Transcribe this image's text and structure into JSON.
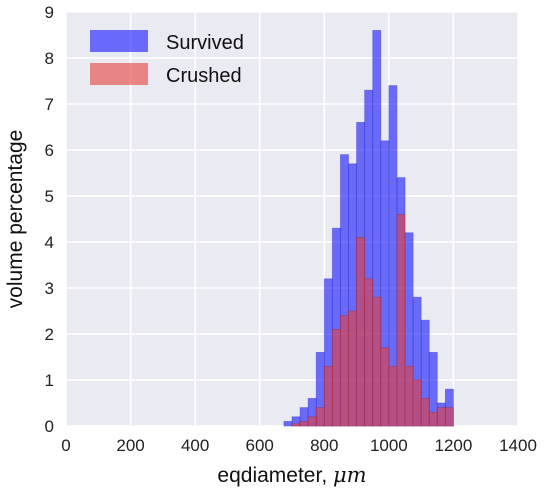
{
  "chart_data": {
    "type": "histogram",
    "title": "",
    "xlabel": "eqdiameter, ",
    "xlabel_unit": "μm",
    "ylabel": "volume percentage",
    "xlim": [
      0,
      1400
    ],
    "ylim": [
      0,
      9
    ],
    "xticks": [
      "0",
      "200",
      "400",
      "600",
      "800",
      "1000",
      "1200",
      "1400"
    ],
    "yticks": [
      "0",
      "1",
      "2",
      "3",
      "4",
      "5",
      "6",
      "7",
      "8",
      "9"
    ],
    "grid": true,
    "legend_position": "top-left",
    "bin_width": 25,
    "bin_starts": [
      675,
      700,
      725,
      750,
      775,
      800,
      825,
      850,
      875,
      900,
      925,
      950,
      975,
      1000,
      1025,
      1050,
      1075,
      1100,
      1125,
      1150,
      1175
    ],
    "series": [
      {
        "name": "Survived",
        "color": "#0000ff",
        "values": [
          0.1,
          0.2,
          0.4,
          0.6,
          1.6,
          3.2,
          4.3,
          5.9,
          5.7,
          6.6,
          7.3,
          8.6,
          6.2,
          7.4,
          5.4,
          4.2,
          2.8,
          2.3,
          1.6,
          0.5,
          0.8
        ]
      },
      {
        "name": "Crushed",
        "color": "#e8403a",
        "values": [
          0,
          0.05,
          0.1,
          0.2,
          0.4,
          1.3,
          2.1,
          2.4,
          2.5,
          4.1,
          3.2,
          2.8,
          1.7,
          1.3,
          4.6,
          1.3,
          1.0,
          0.6,
          0.3,
          0.4,
          0.4
        ]
      }
    ]
  }
}
